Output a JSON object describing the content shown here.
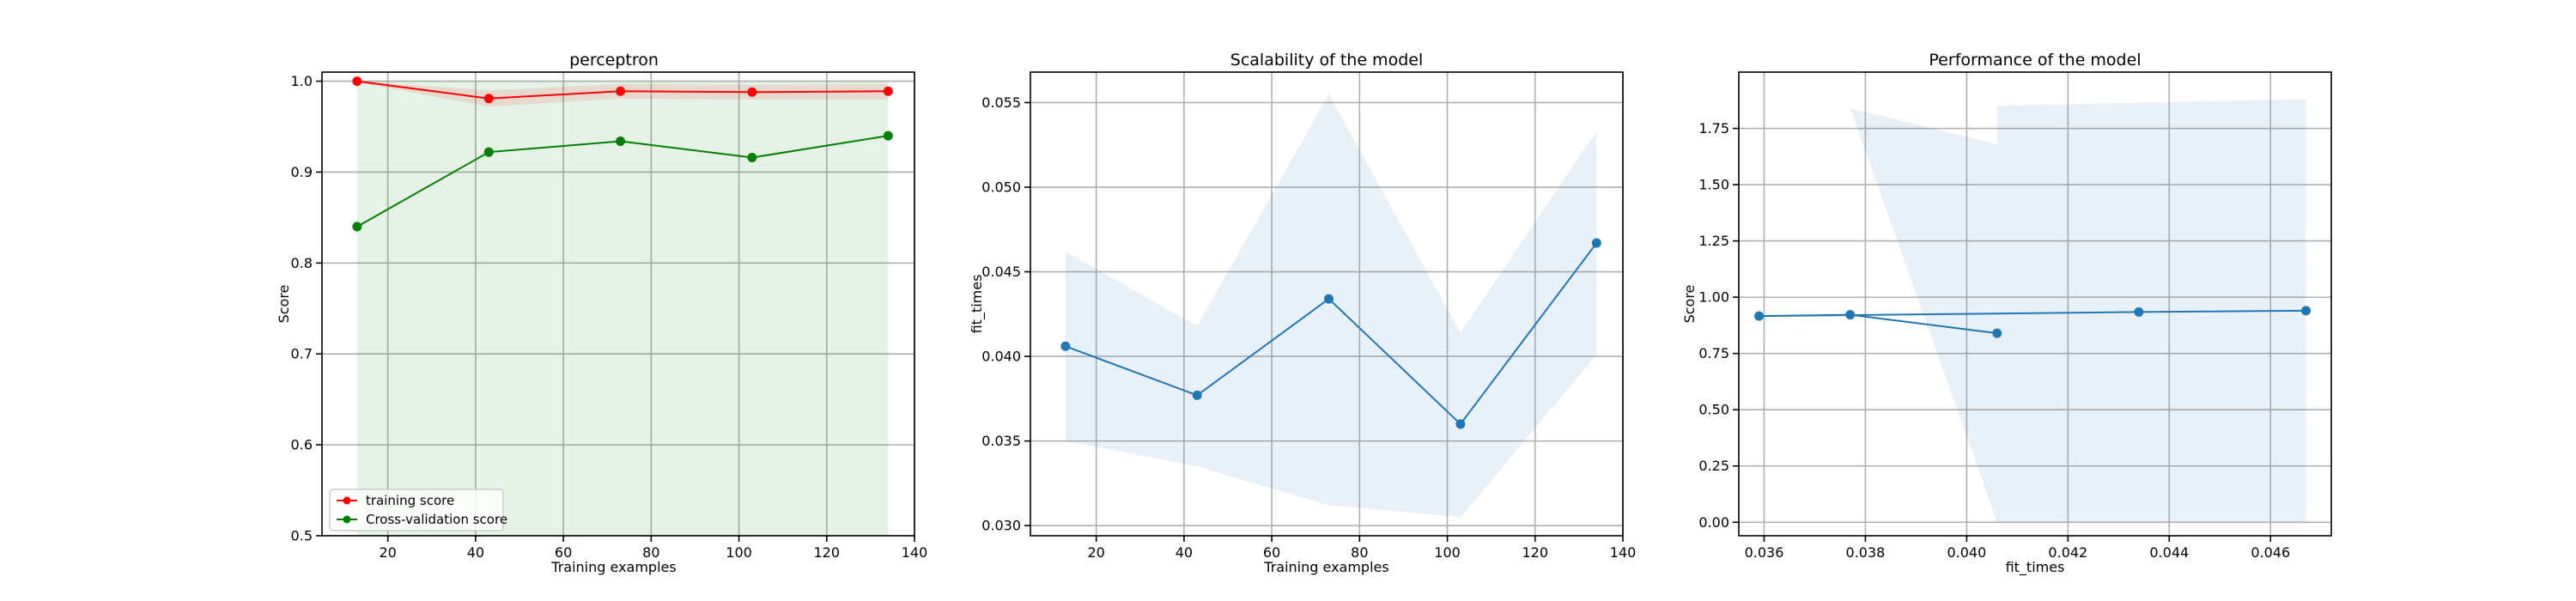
{
  "chart_data": [
    {
      "type": "line",
      "title": "perceptron",
      "xlabel": "Training examples",
      "ylabel": "Score",
      "xlim": [
        5,
        140
      ],
      "ylim": [
        0.5,
        1.01
      ],
      "xticks": [
        20,
        40,
        60,
        80,
        100,
        120,
        140
      ],
      "yticks": [
        0.5,
        0.6,
        0.7,
        0.8,
        0.9,
        1.0
      ],
      "grid": true,
      "legend_placement": "lower-left",
      "x": [
        13,
        43,
        73,
        103,
        134
      ],
      "series": [
        {
          "name": "training score",
          "color": "#ff0000",
          "values": [
            1.0,
            0.981,
            0.989,
            0.988,
            0.989
          ],
          "band_lower": [
            0.999,
            0.972,
            0.981,
            0.98,
            0.98
          ],
          "band_upper": [
            1.0,
            0.99,
            0.997,
            0.996,
            0.997
          ]
        },
        {
          "name": "Cross-validation score",
          "color": "#008000",
          "values": [
            0.84,
            0.922,
            0.934,
            0.916,
            0.94
          ],
          "band_lower": [
            0.5,
            0.5,
            0.5,
            0.5,
            0.5
          ],
          "band_upper": [
            1.0,
            1.0,
            1.0,
            1.0,
            1.0
          ]
        }
      ]
    },
    {
      "type": "line",
      "title": "Scalability of the model",
      "xlabel": "Training examples",
      "ylabel": "fit_times",
      "xlim": [
        5,
        140
      ],
      "ylim": [
        0.0294,
        0.0568
      ],
      "xticks": [
        20,
        40,
        60,
        80,
        100,
        120,
        140
      ],
      "yticks": [
        0.03,
        0.035,
        0.04,
        0.045,
        0.05,
        0.055
      ],
      "ytick_labels": [
        "0.030",
        "0.035",
        "0.040",
        "0.045",
        "0.050",
        "0.055"
      ],
      "grid": true,
      "x": [
        13,
        43,
        73,
        103,
        134
      ],
      "series": [
        {
          "color": "#1f77b4",
          "values": [
            0.0406,
            0.0377,
            0.0434,
            0.036,
            0.0467
          ],
          "band_lower": [
            0.035,
            0.0335,
            0.0312,
            0.0305,
            0.0401
          ],
          "band_upper": [
            0.0462,
            0.0418,
            0.0555,
            0.0414,
            0.0533
          ]
        }
      ]
    },
    {
      "type": "line",
      "title": "Performance of the model",
      "xlabel": "fit_times",
      "ylabel": "Score",
      "xlim": [
        0.0355,
        0.0472
      ],
      "ylim": [
        -0.06,
        2.0
      ],
      "xticks": [
        0.036,
        0.038,
        0.04,
        0.042,
        0.044,
        0.046
      ],
      "xtick_labels": [
        "0.036",
        "0.038",
        "0.040",
        "0.042",
        "0.044",
        "0.046"
      ],
      "yticks": [
        0.0,
        0.25,
        0.5,
        0.75,
        1.0,
        1.25,
        1.5,
        1.75
      ],
      "ytick_labels": [
        "0.00",
        "0.25",
        "0.50",
        "0.75",
        "1.00",
        "1.25",
        "1.50",
        "1.75"
      ],
      "grid": true,
      "series": [
        {
          "color": "#1f77b4",
          "x": [
            0.0406,
            0.0377,
            0.0359,
            0.0434,
            0.0467
          ],
          "values": [
            0.84,
            0.922,
            0.916,
            0.934,
            0.94
          ]
        }
      ],
      "band": {
        "color": "#1f77b4",
        "x": [
          0.0377,
          0.0406,
          0.0406,
          0.0467
        ],
        "lower": [
          null,
          0.0,
          0.0,
          0.0
        ],
        "upper": [
          1.84,
          1.68,
          1.85,
          1.88
        ]
      }
    }
  ]
}
